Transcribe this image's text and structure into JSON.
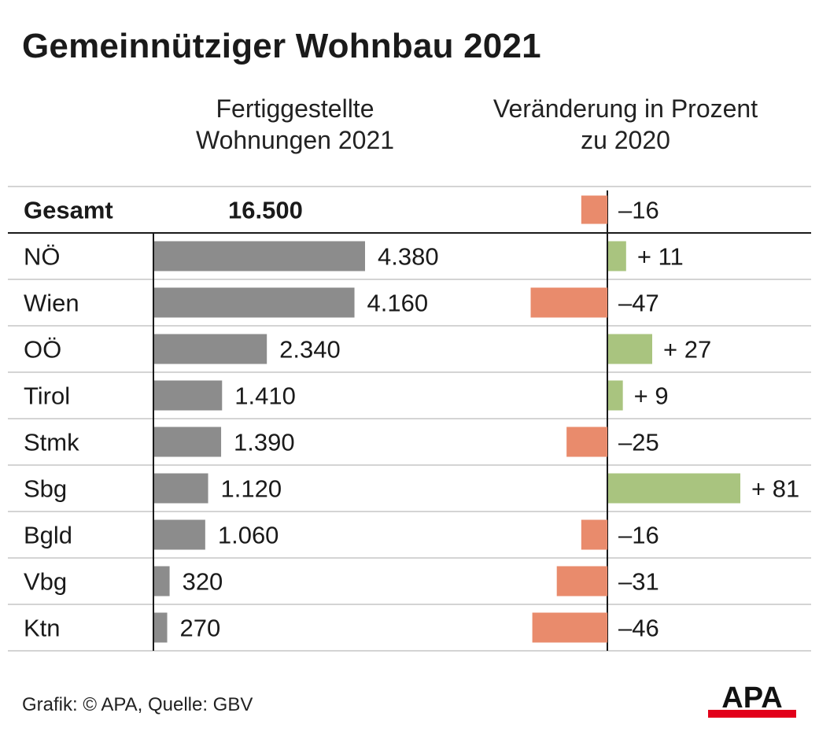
{
  "title": "Gemeinnütziger Wohnbau 2021",
  "header": {
    "left_line1": "Fertiggestellte",
    "left_line2": "Wohnungen 2021",
    "right_line1": "Veränderung in Prozent",
    "right_line2": "zu 2020"
  },
  "footer": {
    "credit": "Grafik: © APA, Quelle: GBV"
  },
  "logo": {
    "text": "APA",
    "accent_color": "#e2001a"
  },
  "colors": {
    "bar_gray": "#8c8c8c",
    "negative": "#e98b6c",
    "positive": "#a9c47f",
    "gridline": "#d4d4d4",
    "axis": "#1a1a1a"
  },
  "chart_data": [
    {
      "type": "bar",
      "orientation": "horizontal",
      "title": "Fertiggestellte Wohnungen 2021",
      "total": {
        "label": "Gesamt",
        "value": 16500,
        "display": "16.500"
      },
      "categories": [
        "NÖ",
        "Wien",
        "OÖ",
        "Tirol",
        "Stmk",
        "Sbg",
        "Bgld",
        "Vbg",
        "Ktn"
      ],
      "values": [
        4380,
        4160,
        2340,
        1410,
        1390,
        1120,
        1060,
        320,
        270
      ],
      "labels": [
        "4.380",
        "4.160",
        "2.340",
        "1.410",
        "1.390",
        "1.120",
        "1.060",
        "320",
        "270"
      ]
    },
    {
      "type": "bar",
      "orientation": "horizontal",
      "diverging": true,
      "title": "Veränderung in Prozent zu 2020",
      "total": {
        "label": "Gesamt",
        "value": -16,
        "display": "–16"
      },
      "categories": [
        "NÖ",
        "Wien",
        "OÖ",
        "Tirol",
        "Stmk",
        "Sbg",
        "Bgld",
        "Vbg",
        "Ktn"
      ],
      "values": [
        11,
        -47,
        27,
        9,
        -25,
        81,
        -16,
        -31,
        -46
      ],
      "labels": [
        "+ 11",
        "–47",
        "+ 27",
        "+ 9",
        "–25",
        "+ 81",
        "–16",
        "–31",
        "–46"
      ]
    }
  ]
}
